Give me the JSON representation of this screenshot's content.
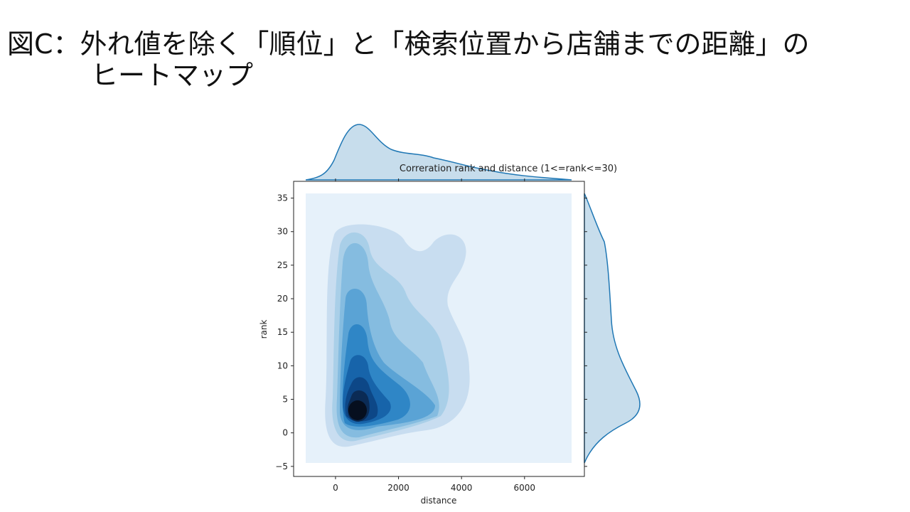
{
  "heading": [
    "図C：外れ値を除く「順位」と「検索位置から店舗までの距離」の",
    "ヒートマップ"
  ],
  "chart_data": {
    "type": "kde",
    "title": "Correration rank and distance (1<=rank<=30)",
    "xlabel": "distance",
    "ylabel": "rank",
    "xlim": [
      -1330,
      7900
    ],
    "ylim": [
      -6.5,
      37.5
    ],
    "xticks": [
      0,
      2000,
      4000,
      6000
    ],
    "yticks": [
      {
        "value": -5,
        "label": "−5"
      },
      0,
      5,
      10,
      15,
      20,
      25,
      30,
      35
    ],
    "color": "#1f77b4"
  }
}
